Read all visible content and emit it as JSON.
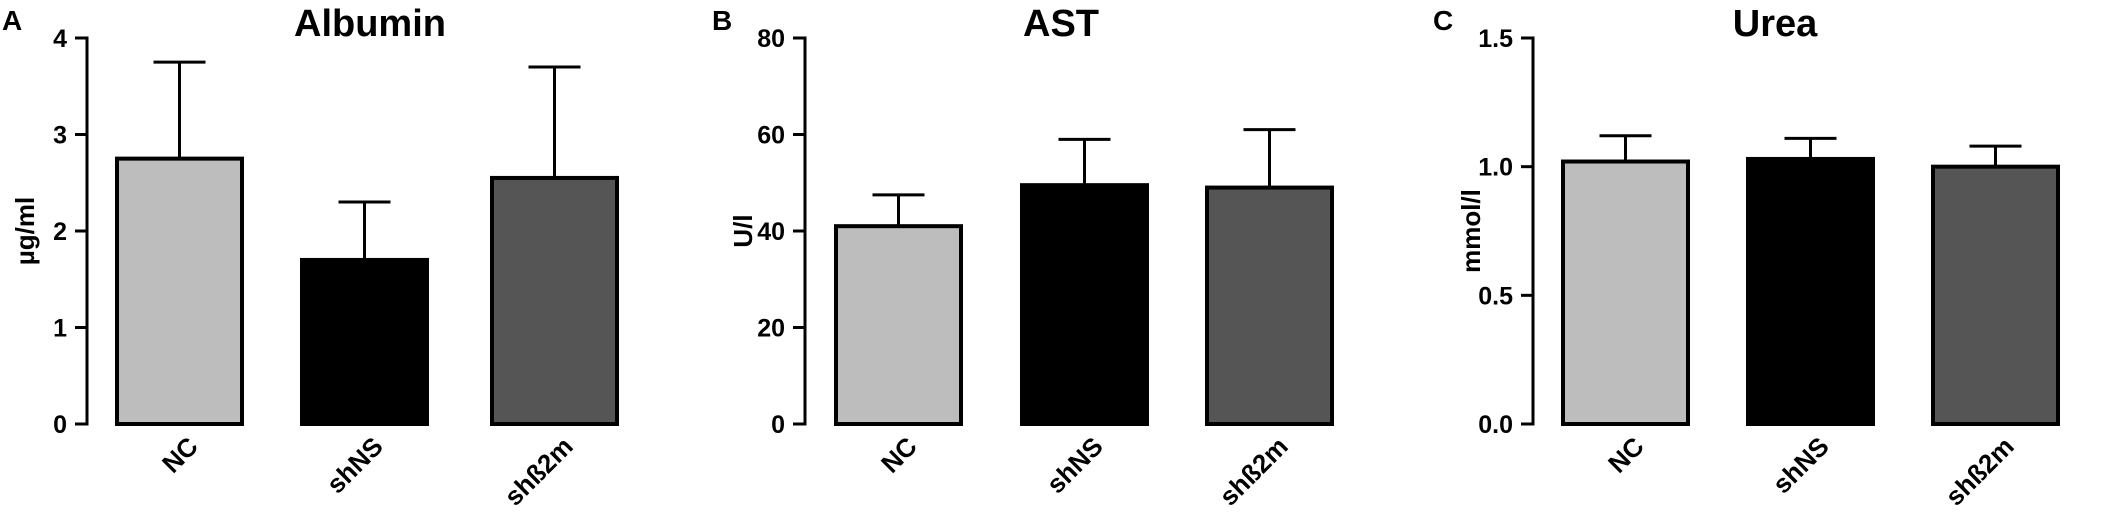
{
  "chart_data": [
    {
      "panel": "A",
      "type": "bar",
      "title": "Albumin",
      "ylabel": "µg/ml",
      "xlabel": "",
      "categories": [
        "NC",
        "shNS",
        "shß2m"
      ],
      "values": [
        2.75,
        1.7,
        2.55
      ],
      "errors": [
        1.0,
        0.6,
        1.15
      ],
      "colors": [
        "#bdbdbd",
        "#000000",
        "#555555"
      ],
      "ylim": [
        0,
        4
      ],
      "yticks": [
        0,
        1,
        2,
        3,
        4
      ],
      "ytick_labels": [
        "0",
        "1",
        "2",
        "3",
        "4"
      ]
    },
    {
      "panel": "B",
      "type": "bar",
      "title": "AST",
      "ylabel": "U/l",
      "xlabel": "",
      "categories": [
        "NC",
        "shNS",
        "shß2m"
      ],
      "values": [
        41,
        49.5,
        49
      ],
      "errors": [
        6.5,
        9.5,
        12
      ],
      "colors": [
        "#bdbdbd",
        "#000000",
        "#555555"
      ],
      "ylim": [
        0,
        80
      ],
      "yticks": [
        0,
        20,
        40,
        60,
        80
      ],
      "ytick_labels": [
        "0",
        "20",
        "40",
        "60",
        "80"
      ]
    },
    {
      "panel": "C",
      "type": "bar",
      "title": "Urea",
      "ylabel": "mmol/l",
      "xlabel": "",
      "categories": [
        "NC",
        "shNS",
        "shß2m"
      ],
      "values": [
        1.02,
        1.03,
        1.0
      ],
      "errors": [
        0.1,
        0.08,
        0.08
      ],
      "colors": [
        "#bdbdbd",
        "#000000",
        "#555555"
      ],
      "ylim": [
        0,
        1.5
      ],
      "yticks": [
        0,
        0.5,
        1.0,
        1.5
      ],
      "ytick_labels": [
        "0.0",
        "0.5",
        "1.0",
        "1.5"
      ]
    }
  ]
}
